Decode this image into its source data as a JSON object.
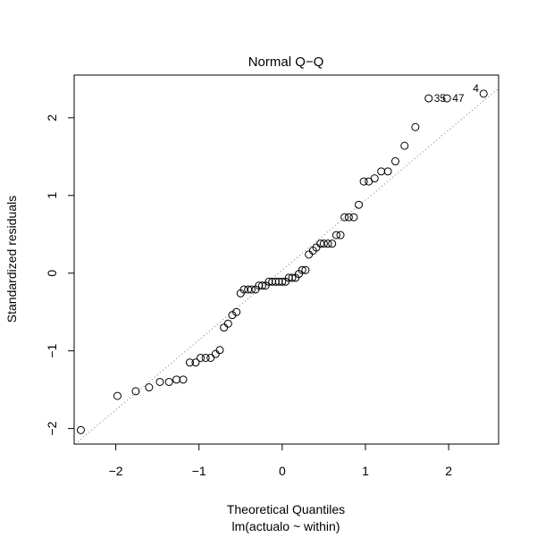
{
  "chart_data": {
    "type": "scatter",
    "title": "Normal Q−Q",
    "xlabel": "Theoretical Quantiles",
    "subtitle": "lm(actualo ~ within)",
    "ylabel": "Standardized residuals",
    "xlim": [
      -2.5,
      2.6
    ],
    "ylim": [
      -2.2,
      2.55
    ],
    "xticks": [
      -2,
      -1,
      0,
      1,
      2
    ],
    "yticks": [
      -2,
      -1,
      0,
      1,
      2
    ],
    "xtick_labels": [
      "−2",
      "−1",
      "0",
      "1",
      "2"
    ],
    "ytick_labels": [
      "−2",
      "−1",
      "0",
      "1",
      "2"
    ],
    "grid": false,
    "reference_line": {
      "style": "dotted",
      "slope": 0.9,
      "intercept": 0.04
    },
    "points": [
      {
        "x": -2.42,
        "y": -2.02
      },
      {
        "x": -1.98,
        "y": -1.58
      },
      {
        "x": -1.76,
        "y": -1.52
      },
      {
        "x": -1.6,
        "y": -1.47
      },
      {
        "x": -1.47,
        "y": -1.4
      },
      {
        "x": -1.36,
        "y": -1.4
      },
      {
        "x": -1.27,
        "y": -1.37
      },
      {
        "x": -1.19,
        "y": -1.37
      },
      {
        "x": -1.11,
        "y": -1.15
      },
      {
        "x": -1.04,
        "y": -1.15
      },
      {
        "x": -0.98,
        "y": -1.09
      },
      {
        "x": -0.92,
        "y": -1.09
      },
      {
        "x": -0.86,
        "y": -1.09
      },
      {
        "x": -0.8,
        "y": -1.04
      },
      {
        "x": -0.75,
        "y": -0.99
      },
      {
        "x": -0.7,
        "y": -0.7
      },
      {
        "x": -0.65,
        "y": -0.65
      },
      {
        "x": -0.6,
        "y": -0.54
      },
      {
        "x": -0.55,
        "y": -0.5
      },
      {
        "x": -0.5,
        "y": -0.26
      },
      {
        "x": -0.46,
        "y": -0.21
      },
      {
        "x": -0.41,
        "y": -0.21
      },
      {
        "x": -0.37,
        "y": -0.21
      },
      {
        "x": -0.32,
        "y": -0.21
      },
      {
        "x": -0.28,
        "y": -0.16
      },
      {
        "x": -0.24,
        "y": -0.16
      },
      {
        "x": -0.2,
        "y": -0.16
      },
      {
        "x": -0.16,
        "y": -0.11
      },
      {
        "x": -0.12,
        "y": -0.11
      },
      {
        "x": -0.08,
        "y": -0.11
      },
      {
        "x": -0.04,
        "y": -0.11
      },
      {
        "x": 0.0,
        "y": -0.11
      },
      {
        "x": 0.04,
        "y": -0.11
      },
      {
        "x": 0.08,
        "y": -0.06
      },
      {
        "x": 0.12,
        "y": -0.06
      },
      {
        "x": 0.16,
        "y": -0.06
      },
      {
        "x": 0.2,
        "y": -0.01
      },
      {
        "x": 0.24,
        "y": 0.04
      },
      {
        "x": 0.28,
        "y": 0.04
      },
      {
        "x": 0.32,
        "y": 0.24
      },
      {
        "x": 0.37,
        "y": 0.29
      },
      {
        "x": 0.41,
        "y": 0.33
      },
      {
        "x": 0.46,
        "y": 0.38
      },
      {
        "x": 0.5,
        "y": 0.38
      },
      {
        "x": 0.55,
        "y": 0.38
      },
      {
        "x": 0.6,
        "y": 0.38
      },
      {
        "x": 0.65,
        "y": 0.49
      },
      {
        "x": 0.7,
        "y": 0.49
      },
      {
        "x": 0.75,
        "y": 0.72
      },
      {
        "x": 0.8,
        "y": 0.72
      },
      {
        "x": 0.86,
        "y": 0.72
      },
      {
        "x": 0.92,
        "y": 0.88
      },
      {
        "x": 0.98,
        "y": 1.18
      },
      {
        "x": 1.04,
        "y": 1.18
      },
      {
        "x": 1.11,
        "y": 1.22
      },
      {
        "x": 1.19,
        "y": 1.31
      },
      {
        "x": 1.27,
        "y": 1.31
      },
      {
        "x": 1.36,
        "y": 1.44
      },
      {
        "x": 1.47,
        "y": 1.64
      },
      {
        "x": 1.6,
        "y": 1.88
      },
      {
        "x": 1.76,
        "y": 2.25,
        "label": "35"
      },
      {
        "x": 1.98,
        "y": 2.25,
        "label": "47"
      },
      {
        "x": 2.42,
        "y": 2.31,
        "label": "4"
      }
    ]
  }
}
